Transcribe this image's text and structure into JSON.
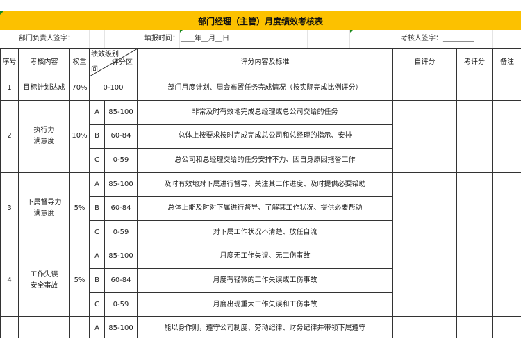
{
  "title": "部门经理（主管）月度绩效考核表",
  "info": {
    "dept_sign": "部门负责人签字：",
    "fill_time_label": "填报时间：",
    "fill_time_value": "____年__月__日",
    "reviewer_sign": "考核人签字：_________"
  },
  "header": {
    "no": "序号",
    "item": "考核内容",
    "weight": "权重",
    "grade_top": "绩效级别",
    "grade_range": "评分区",
    "grade_bottom": "间",
    "criteria": "评分内容及标准",
    "self_score": "自评分",
    "review_score": "考评分",
    "remark": "备注"
  },
  "rows": [
    {
      "no": "1",
      "item": "目标计划达成",
      "weight": "70%",
      "subs": [
        {
          "grade": "",
          "range": "0-100",
          "text": "部门月度计划、周会布置任务完成情况（按实际完成比例评分）"
        }
      ]
    },
    {
      "no": "2",
      "item": "执行力\n满意度",
      "weight": "10%",
      "subs": [
        {
          "grade": "A",
          "range": "85-100",
          "text": "非常及时有效地完成总经理或总公司交给的任务"
        },
        {
          "grade": "B",
          "range": "60-84",
          "text": "总体上按要求按时完成完成总公司和总经理的指示、安排"
        },
        {
          "grade": "C",
          "range": "0-59",
          "text": "总公司和总经理交给的任务安排不力、因自身原因拖沓工作"
        }
      ]
    },
    {
      "no": "3",
      "item": "下属督导力\n满意度",
      "weight": "5%",
      "subs": [
        {
          "grade": "A",
          "range": "85-100",
          "text": "及时有效地对下属进行督导、关注其工作进度、及时提供必要帮助"
        },
        {
          "grade": "B",
          "range": "60-84",
          "text": "总体上能及时对下属进行督导、了解其工作状况、提供必要帮助"
        },
        {
          "grade": "C",
          "range": "0-59",
          "text": "对下属工作状况不清楚、放任自流"
        }
      ]
    },
    {
      "no": "4",
      "item": "工作失误\n安全事故",
      "weight": "5%",
      "subs": [
        {
          "grade": "A",
          "range": "85-100",
          "text": "月度无工作失误、无工伤事故"
        },
        {
          "grade": "B",
          "range": "60-84",
          "text": "月度有轻微的工作失误或工伤事故"
        },
        {
          "grade": "C",
          "range": "0-59",
          "text": "月度出现重大工作失误和工伤事故"
        }
      ]
    },
    {
      "no": "",
      "item": "",
      "weight": "",
      "subs": [
        {
          "grade": "A",
          "range": "85-100",
          "text": "能以身作则，遵守公司制度、劳动纪律、财务纪律并带领下属遵守"
        }
      ]
    }
  ]
}
